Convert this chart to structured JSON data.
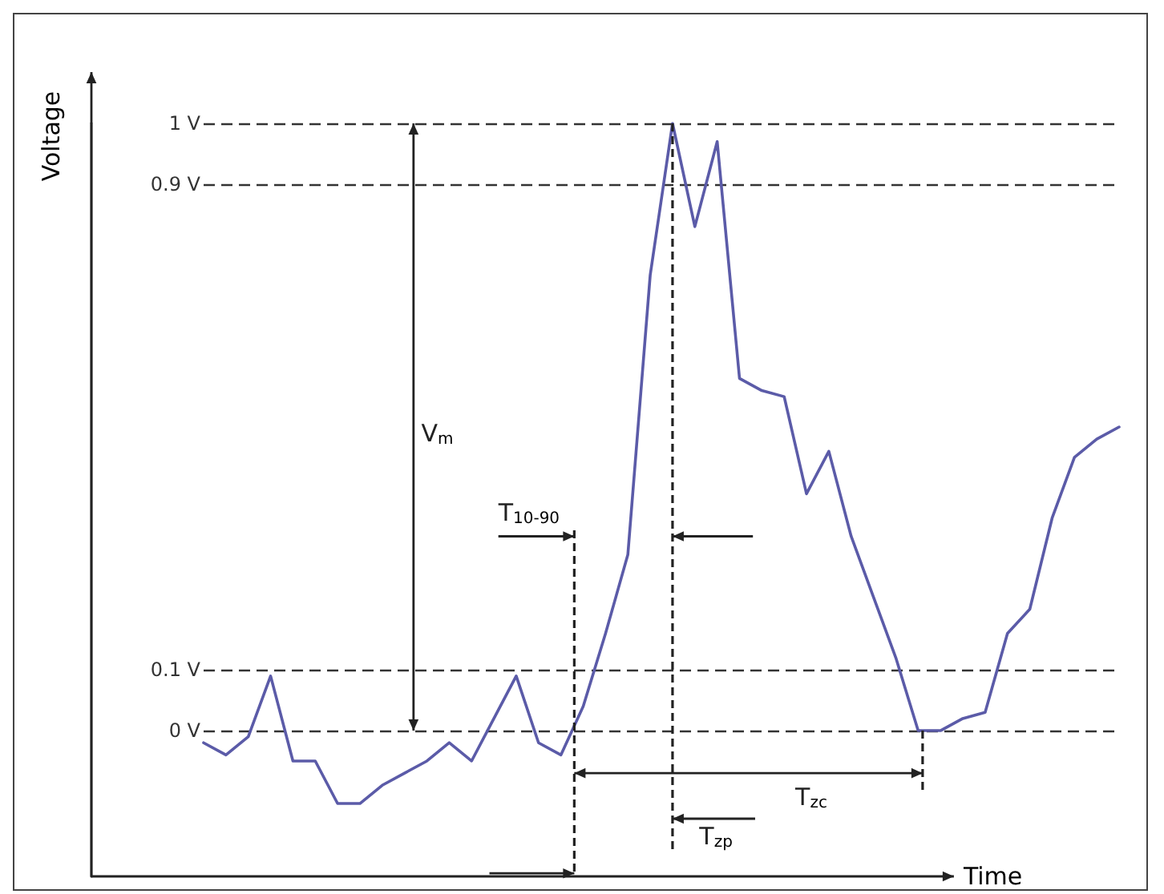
{
  "chart_data": {
    "type": "line",
    "xlabel": "Time",
    "ylabel": "Voltage",
    "categories": [
      null,
      null,
      null,
      null,
      null,
      null,
      null,
      null,
      null,
      null,
      null,
      null,
      null,
      null,
      null,
      null,
      null,
      null,
      null,
      null,
      null,
      null,
      null,
      null,
      null,
      null,
      null,
      null,
      null,
      null,
      null,
      null,
      null,
      null,
      null,
      null,
      null,
      null,
      null,
      null,
      null,
      null
    ],
    "series": [
      {
        "color": "#5b5ba8",
        "values": [
          -0.02,
          -0.04,
          -0.01,
          0.09,
          -0.05,
          -0.05,
          -0.12,
          -0.12,
          -0.09,
          -0.07,
          -0.05,
          -0.02,
          -0.05,
          0.02,
          0.09,
          -0.02,
          -0.04,
          0.04,
          0.16,
          0.29,
          0.75,
          1.0,
          0.83,
          0.97,
          0.58,
          0.56,
          0.55,
          0.39,
          0.46,
          0.32,
          0.22,
          0.12,
          0.0,
          0.0,
          0.02,
          0.03,
          0.16,
          0.2,
          0.35,
          0.45,
          0.48,
          0.5
        ]
      }
    ],
    "ylim": [
      -0.24,
      1
    ],
    "yticks": [
      {
        "value": 0,
        "label": "0 V"
      },
      {
        "value": 0.1,
        "label": "0.1 V"
      },
      {
        "value": 0.9,
        "label": "0.9 V"
      },
      {
        "value": 1,
        "label": "1 V"
      }
    ],
    "grid": "y",
    "tick_labels": "y",
    "marker": "none",
    "line_style": "solid",
    "annotations": [
      "V$_{m}$",
      "T$_{10-90}$",
      "T$_{zc}$",
      "T$_{zp}$"
    ]
  }
}
